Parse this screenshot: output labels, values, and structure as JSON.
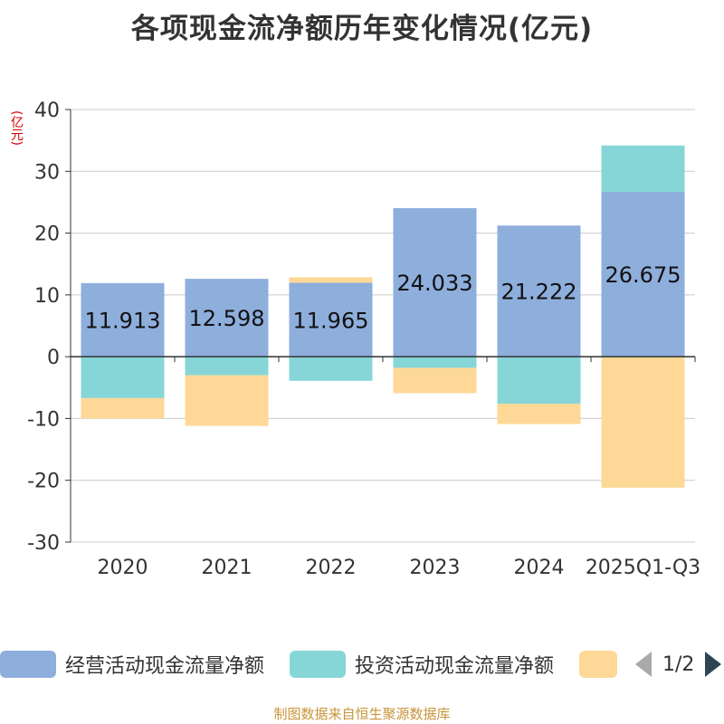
{
  "title": "各项现金流净额历年变化情况(亿元)",
  "unit_label": "(亿元)",
  "legend": {
    "items": [
      {
        "label": "经营活动现金流量净额",
        "color": "#8eaedc"
      },
      {
        "label": "投资活动现金流量净额",
        "color": "#86d6d8"
      },
      {
        "label": "",
        "color": "#fdd896"
      }
    ],
    "page_indicator": "1/2"
  },
  "footer": "制图数据来自恒生聚源数据库",
  "chart_data": {
    "type": "bar",
    "stacked": true,
    "categories": [
      "2020",
      "2021",
      "2022",
      "2023",
      "2024",
      "2025Q1-Q3"
    ],
    "ylim": [
      -30,
      40
    ],
    "yticks": [
      40,
      30,
      20,
      10,
      0,
      -10,
      -20,
      -30
    ],
    "ylabel": "(亿元)",
    "series": [
      {
        "name": "经营活动现金流量净额",
        "color": "#8eaedc",
        "values": [
          11.913,
          12.598,
          11.965,
          24.033,
          21.222,
          26.675
        ],
        "labels": [
          "11.913",
          "12.598",
          "11.965",
          "24.033",
          "21.222",
          "26.675"
        ]
      },
      {
        "name": "投资活动现金流量净额",
        "color": "#86d6d8",
        "values": [
          -6.7,
          -3.0,
          -3.9,
          -1.8,
          -7.6,
          7.5
        ]
      },
      {
        "name": "",
        "color": "#fdd896",
        "values": [
          -3.3,
          -8.2,
          0.9,
          -4.1,
          -3.3,
          -21.2
        ]
      }
    ],
    "grid": true,
    "legend_position": "bottom"
  }
}
